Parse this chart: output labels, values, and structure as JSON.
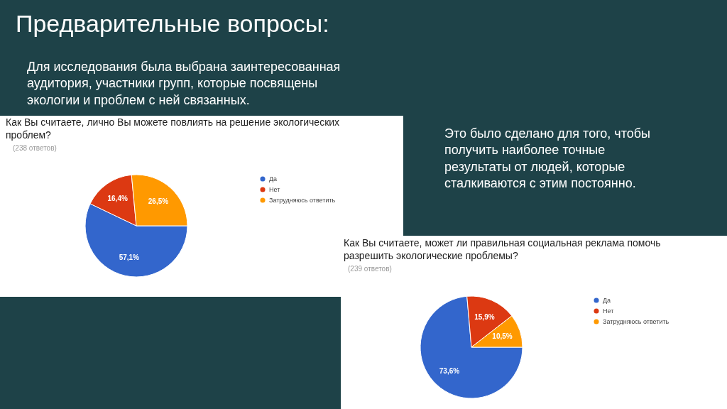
{
  "chart_data": [
    {
      "type": "pie",
      "title": "Как Вы считаете, лично Вы можете повлиять на решение экологических\nпроблем?",
      "subtitle": "(238 ответов)",
      "categories": [
        "Да",
        "Нет",
        "Затрудняюсь ответить"
      ],
      "values": [
        57.1,
        16.4,
        26.5
      ],
      "colors": [
        "#3366cc",
        "#dc3912",
        "#ff9900"
      ],
      "value_labels": [
        "57,1%",
        "16,4%",
        "26,5%"
      ],
      "legend": "right",
      "annotations": [
        "Предварительные вопросы:",
        "Для исследования была выбрана заинтересованная\nаудитория, участники групп, которые посвящены\nэкологии и проблем с ней связанных."
      ]
    },
    {
      "type": "pie",
      "title": "Как Вы считаете, может ли правильная социальная реклама помочь\nразрешить экологические проблемы?",
      "subtitle": "(239 ответов)",
      "categories": [
        "Да",
        "Нет",
        "Затрудняюсь ответить"
      ],
      "values": [
        73.6,
        15.9,
        10.5
      ],
      "colors": [
        "#3366cc",
        "#dc3912",
        "#ff9900"
      ],
      "value_labels": [
        "73,6%",
        "15,9%",
        "10,5%"
      ],
      "legend": "right",
      "annotations": [
        "Это было сделано для того, чтобы\nполучить наиболее точные\nрезультаты от людей, которые\nсталкиваются с этим постоянно."
      ]
    }
  ]
}
